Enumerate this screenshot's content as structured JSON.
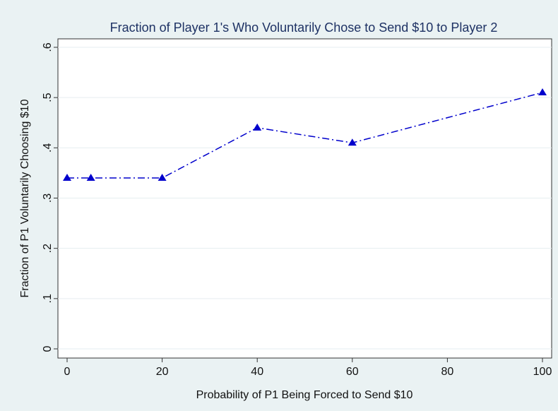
{
  "chart_data": {
    "type": "line",
    "title": "Fraction of Player 1's Who Voluntarily Chose to Send $10 to Player 2",
    "x_label": "Probability of P1 Being Forced to Send $10",
    "y_label": "Fraction of P1 Voluntarily Choosing $10",
    "x": [
      0,
      5,
      20,
      40,
      60,
      100
    ],
    "series": [
      {
        "color": "#0000cc",
        "values": [
          0.34,
          0.34,
          0.34,
          0.44,
          0.41,
          0.51
        ]
      }
    ],
    "xlim": [
      0,
      100
    ],
    "xticks": [
      0,
      20,
      40,
      60,
      80,
      100
    ],
    "ylim": [
      0,
      0.6
    ],
    "yticks": [
      0,
      {
        "value": 0.1,
        "label": ".1"
      },
      {
        "value": 0.2,
        "label": ".2"
      },
      {
        "value": 0.3,
        "label": ".3"
      },
      {
        "value": 0.4,
        "label": ".4"
      },
      {
        "value": 0.5,
        "label": ".5"
      },
      {
        "value": 0.6,
        "label": ".6"
      }
    ],
    "grid": true
  }
}
